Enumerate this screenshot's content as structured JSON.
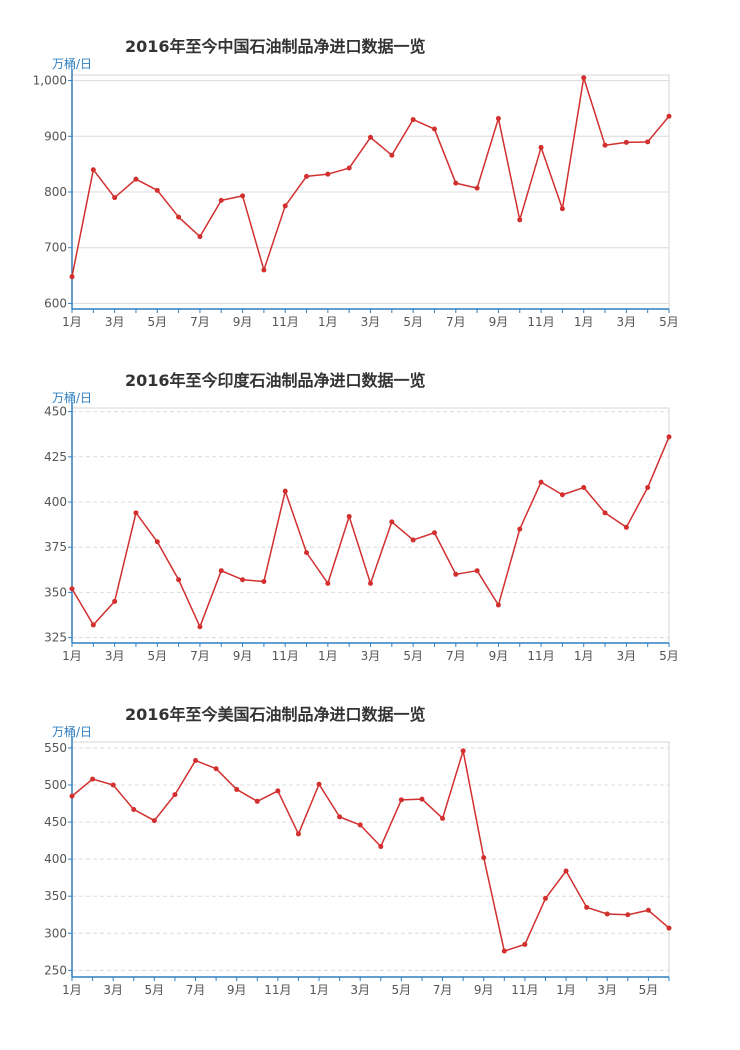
{
  "chart_data": [
    {
      "type": "line",
      "title": "2016年至今中国石油制品净进口数据一览",
      "ylabel": "万桶/日",
      "ylim": [
        590,
        1010
      ],
      "yticks": [
        600,
        700,
        800,
        900,
        1000
      ],
      "ytick_labels": [
        "600",
        "700",
        "800",
        "900",
        "1,000"
      ],
      "grid": "solid",
      "x": [
        1,
        2,
        3,
        4,
        5,
        6,
        7,
        8,
        9,
        10,
        11,
        12,
        13,
        14,
        15,
        16,
        17,
        18,
        19,
        20,
        21,
        22,
        23,
        24,
        25,
        26,
        27,
        28,
        29
      ],
      "xtick_labels": [
        "1月",
        "3月",
        "5月",
        "7月",
        "9月",
        "11月",
        "1月",
        "3月",
        "5月",
        "7月",
        "9月",
        "11月",
        "1月",
        "3月",
        "5月"
      ],
      "series": [
        {
          "name": "中国",
          "color": "#d22f2f",
          "values": [
            648,
            840,
            790,
            823,
            803,
            755,
            720,
            785,
            793,
            660,
            775,
            828,
            832,
            843,
            898,
            866,
            930,
            913,
            816,
            807,
            932,
            750,
            880,
            770,
            1005,
            884,
            889,
            890,
            936
          ]
        }
      ]
    },
    {
      "type": "line",
      "title": "2016年至今印度石油制品净进口数据一览",
      "ylabel": "万桶/日",
      "ylim": [
        322,
        452
      ],
      "yticks": [
        325,
        350,
        375,
        400,
        425,
        450
      ],
      "ytick_labels": [
        "325",
        "350",
        "375",
        "400",
        "425",
        "450"
      ],
      "grid": "dashed",
      "x": [
        1,
        2,
        3,
        4,
        5,
        6,
        7,
        8,
        9,
        10,
        11,
        12,
        13,
        14,
        15,
        16,
        17,
        18,
        19,
        20,
        21,
        22,
        23,
        24,
        25,
        26,
        27,
        28,
        29
      ],
      "xtick_labels": [
        "1月",
        "3月",
        "5月",
        "7月",
        "9月",
        "11月",
        "1月",
        "3月",
        "5月",
        "7月",
        "9月",
        "11月",
        "1月",
        "3月",
        "5月"
      ],
      "series": [
        {
          "name": "印度",
          "color": "#d22f2f",
          "values": [
            352,
            332,
            345,
            394,
            378,
            357,
            331,
            362,
            357,
            356,
            406,
            372,
            355,
            392,
            355,
            389,
            379,
            383,
            360,
            362,
            343,
            385,
            411,
            404,
            408,
            394,
            386,
            408,
            436
          ]
        }
      ]
    },
    {
      "type": "line",
      "title": "2016年至今美国石油制品净进口数据一览",
      "ylabel": "万桶/日",
      "ylim": [
        241,
        558
      ],
      "yticks": [
        250,
        300,
        350,
        400,
        450,
        500,
        550
      ],
      "ytick_labels": [
        "250",
        "300",
        "350",
        "400",
        "450",
        "500",
        "550"
      ],
      "grid": "dashed",
      "x": [
        1,
        2,
        3,
        4,
        5,
        6,
        7,
        8,
        9,
        10,
        11,
        12,
        13,
        14,
        15,
        16,
        17,
        18,
        19,
        20,
        21,
        22,
        23,
        24,
        25,
        26,
        27,
        28,
        29,
        30
      ],
      "xtick_labels": [
        "1月",
        "3月",
        "5月",
        "7月",
        "9月",
        "11月",
        "1月",
        "3月",
        "5月",
        "7月",
        "9月",
        "11月",
        "1月",
        "3月",
        "5月"
      ],
      "series": [
        {
          "name": "美国",
          "color": "#d22f2f",
          "values": [
            485,
            508,
            500,
            467,
            452,
            487,
            533,
            522,
            494,
            478,
            492,
            434,
            501,
            457,
            446,
            417,
            480,
            481,
            455,
            546,
            402,
            276,
            285,
            347,
            384,
            335,
            326,
            325,
            331,
            307
          ]
        }
      ]
    }
  ]
}
